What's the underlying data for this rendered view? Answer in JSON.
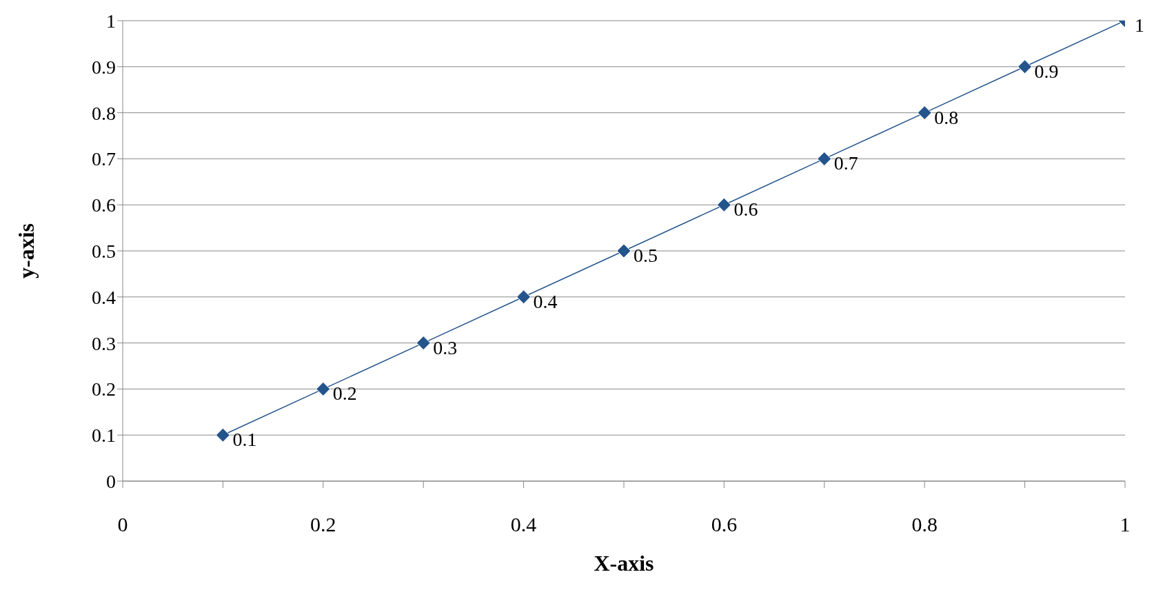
{
  "chart_data": {
    "type": "line",
    "xlabel": "X-axis",
    "ylabel": "y-axis",
    "x": [
      0.1,
      0.2,
      0.3,
      0.4,
      0.5,
      0.6,
      0.7,
      0.8,
      0.9,
      1
    ],
    "values": [
      0.1,
      0.2,
      0.3,
      0.4,
      0.5,
      0.6,
      0.7,
      0.8,
      0.9,
      1
    ],
    "color": "#24548c",
    "marker": "diamond",
    "line_style": "solid",
    "data_labels": true,
    "xlim": [
      0,
      1
    ],
    "xticks": [
      0,
      {
        "value": 0.1,
        "label": null
      },
      0.2,
      {
        "value": 0.3,
        "label": null
      },
      0.4,
      {
        "value": 0.5,
        "label": null
      },
      0.6,
      {
        "value": 0.7,
        "label": null
      },
      0.8,
      {
        "value": 0.9,
        "label": null
      },
      1
    ],
    "ylim": [
      0,
      1
    ],
    "yticks": [
      0,
      0.1,
      0.2,
      0.3,
      0.4,
      0.5,
      0.6,
      0.7,
      0.8,
      0.9,
      1
    ],
    "grid": "y"
  }
}
